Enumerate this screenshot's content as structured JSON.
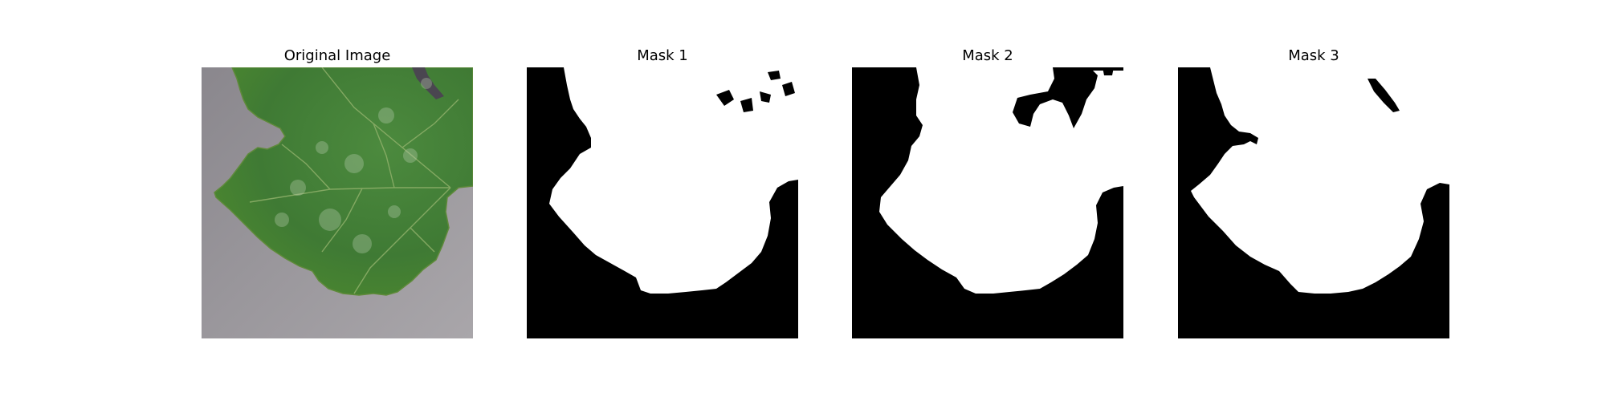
{
  "figure": {
    "panels": [
      {
        "id": "original",
        "title": "Original Image",
        "kind": "photo",
        "content": "grape-leaf-photo"
      },
      {
        "id": "mask1",
        "title": "Mask 1",
        "kind": "binary-mask",
        "content": "segmentation-mask"
      },
      {
        "id": "mask2",
        "title": "Mask 2",
        "kind": "binary-mask",
        "content": "segmentation-mask"
      },
      {
        "id": "mask3",
        "title": "Mask 3",
        "kind": "binary-mask",
        "content": "segmentation-mask"
      }
    ]
  },
  "colors": {
    "page_background": "#ffffff",
    "photo_background": "#8f8c92",
    "leaf_green": "#3f7a34",
    "leaf_dark": "#2f5e28",
    "leaf_vein": "#8fb06a",
    "mask_foreground": "#ffffff",
    "mask_background": "#000000"
  }
}
